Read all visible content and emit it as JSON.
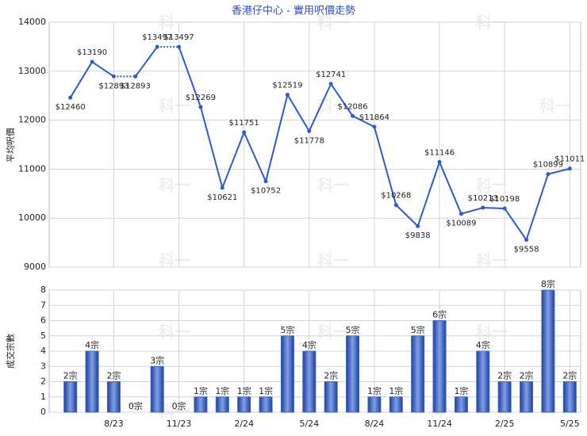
{
  "chart_data": [
    {
      "type": "line",
      "title": "香港仔中心 - 實用呎價走勢",
      "y_label": "平均呎價",
      "watermark": "科一",
      "categories": [
        null,
        null,
        "8/23",
        null,
        null,
        "11/23",
        null,
        null,
        "2/24",
        null,
        null,
        "5/24",
        null,
        null,
        "8/24",
        null,
        null,
        "11/24",
        null,
        null,
        "2/25",
        null,
        null,
        "5/25"
      ],
      "series": [
        {
          "color": "#2a5bd0",
          "values": [
            12460,
            13190,
            12893,
            12893,
            13497,
            13497,
            12269,
            10621,
            11751,
            10752,
            12519,
            11778,
            12741,
            12086,
            11864,
            10268,
            9838,
            11146,
            10089,
            10213,
            10198,
            9558,
            10899,
            11011
          ],
          "value_labels": [
            "$12460",
            "$13190",
            "$12893",
            "$12893",
            "$13497",
            "$13497",
            "$12269",
            "$10621",
            "$11751",
            "$10752",
            "$12519",
            "$11778",
            "$12741",
            "$12086",
            "$11864",
            "$10268",
            "$9838",
            "$11146",
            "$10089",
            "$10213",
            "$10198",
            "$9558",
            "$10899",
            "$11011"
          ]
        }
      ],
      "ylim": [
        9000,
        14000
      ],
      "yticks": [
        9000,
        10000,
        11000,
        12000,
        13000,
        14000
      ],
      "grid": true
    },
    {
      "type": "bar",
      "y_label": "成交宗數",
      "color": "#3a66c8",
      "categories": [
        null,
        null,
        "8/23",
        null,
        null,
        "11/23",
        null,
        null,
        "2/24",
        null,
        null,
        "5/24",
        null,
        null,
        "8/24",
        null,
        null,
        "11/24",
        null,
        null,
        "2/25",
        null,
        null,
        "5/25"
      ],
      "values": [
        2,
        4,
        2,
        0,
        3,
        0,
        1,
        1,
        1,
        1,
        5,
        4,
        2,
        5,
        1,
        1,
        5,
        6,
        1,
        4,
        2,
        2,
        8,
        2
      ],
      "value_labels": [
        "2宗",
        "4宗",
        "2宗",
        "0宗",
        "3宗",
        "0宗",
        "1宗",
        "1宗",
        "1宗",
        "1宗",
        "5宗",
        "4宗",
        "2宗",
        "5宗",
        "1宗",
        "1宗",
        "5宗",
        "6宗",
        "1宗",
        "4宗",
        "2宗",
        "2宗",
        "8宗",
        "2宗"
      ],
      "ylim": [
        0,
        8
      ],
      "yticks": [
        0,
        1,
        2,
        3,
        4,
        5,
        6,
        7,
        8
      ],
      "grid": true
    }
  ]
}
